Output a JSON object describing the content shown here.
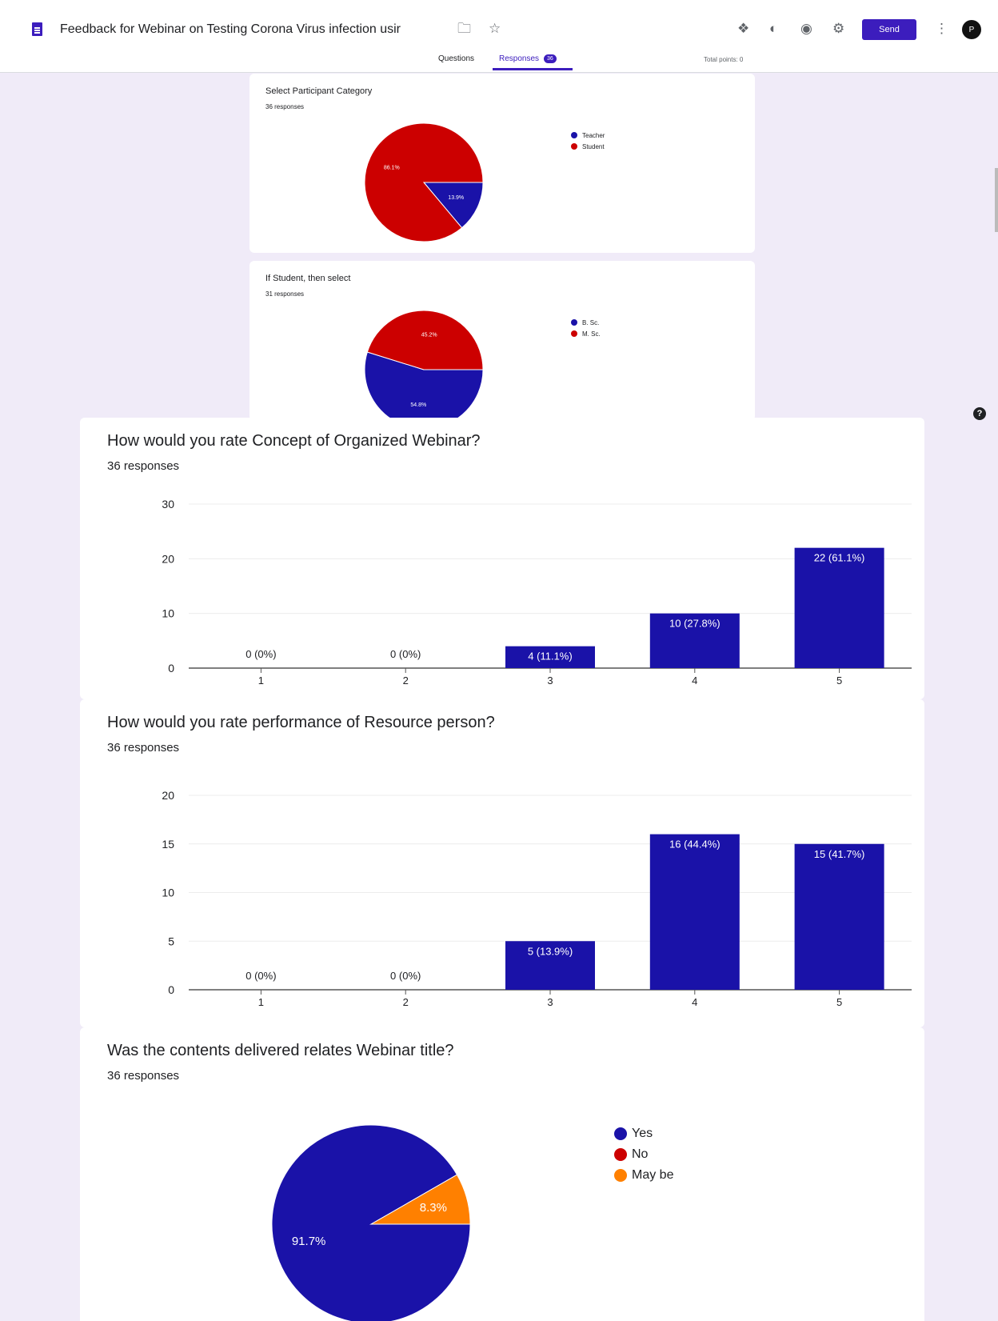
{
  "header": {
    "form_title": "Feedback for Webinar on Testing Corona Virus infection usir",
    "send_label": "Send",
    "avatar_letter": "P",
    "tabs": [
      {
        "label": "Questions"
      },
      {
        "label": "Responses",
        "badge": "36"
      }
    ],
    "total_points": "Total points: 0",
    "help_label": "?"
  },
  "colors": {
    "accent": "#3c1dbd",
    "blue": "#1a12a8",
    "red": "#cc0000",
    "orange": "#ff8000"
  },
  "chart_data": [
    {
      "type": "pie",
      "title": "Select Participant Category",
      "subtitle": "36 responses",
      "categories": [
        "Teacher",
        "Student"
      ],
      "values": [
        13.9,
        86.1
      ],
      "labels": [
        "13.9%",
        "86.1%"
      ],
      "legend": "right"
    },
    {
      "type": "pie",
      "title": "If Student, then select",
      "subtitle": "31 responses",
      "categories": [
        "B. Sc.",
        "M. Sc."
      ],
      "values": [
        54.8,
        45.2
      ],
      "labels": [
        "54.8%",
        "45.2%"
      ],
      "legend": "right"
    },
    {
      "type": "bar",
      "title": "How would you rate Concept of Organized Webinar?",
      "subtitle": "36 responses",
      "categories": [
        "1",
        "2",
        "3",
        "4",
        "5"
      ],
      "values": [
        0,
        0,
        4,
        10,
        22
      ],
      "labels": [
        "0 (0%)",
        "0 (0%)",
        "4 (11.1%)",
        "10 (27.8%)",
        "22 (61.1%)"
      ],
      "ylim": [
        0,
        30
      ],
      "yticks": [
        "0",
        "10",
        "20",
        "30"
      ],
      "grid": true
    },
    {
      "type": "bar",
      "title": "How would you rate performance of Resource person?",
      "subtitle": "36 responses",
      "categories": [
        "1",
        "2",
        "3",
        "4",
        "5"
      ],
      "values": [
        0,
        0,
        5,
        16,
        15
      ],
      "labels": [
        "0 (0%)",
        "0 (0%)",
        "5 (13.9%)",
        "16 (44.4%)",
        "15 (41.7%)"
      ],
      "ylim": [
        0,
        20
      ],
      "yticks": [
        "0",
        "5",
        "10",
        "15",
        "20"
      ],
      "grid": true
    },
    {
      "type": "pie",
      "title": "Was the contents delivered relates Webinar title?",
      "subtitle": "36 responses",
      "categories": [
        "Yes",
        "No",
        "May be"
      ],
      "values": [
        91.7,
        0,
        8.3
      ],
      "labels": [
        "91.7%",
        "",
        "8.3%"
      ],
      "legend": "right"
    }
  ]
}
